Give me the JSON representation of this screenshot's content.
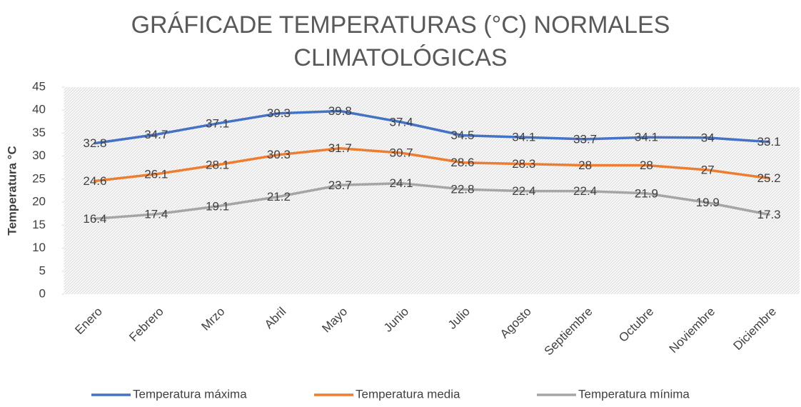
{
  "chart_data": {
    "type": "line",
    "title": "GRÁFICADE TEMPERATURAS (°C) NORMALES CLIMATOLÓGICAS",
    "y_label": "Temperatura °C",
    "categories": [
      "Enero",
      "Febrero",
      "Mrzo",
      "Abril",
      "Mayo",
      "Junio",
      "Julio",
      "Agosto",
      "Septiembre",
      "Octubre",
      "Noviembre",
      "Diciembre"
    ],
    "series": [
      {
        "name": "Temperatura máxima",
        "color": "#4472c4",
        "values": [
          32.8,
          34.7,
          37.1,
          39.3,
          39.8,
          37.4,
          34.5,
          34.1,
          33.7,
          34.1,
          34,
          33.1
        ]
      },
      {
        "name": "Temperatura media",
        "color": "#ed7d31",
        "values": [
          24.6,
          26.1,
          28.1,
          30.3,
          31.7,
          30.7,
          28.6,
          28.3,
          28,
          28,
          27,
          25.2
        ]
      },
      {
        "name": "Temperatura mínima",
        "color": "#a5a5a5",
        "values": [
          16.4,
          17.4,
          19.1,
          21.2,
          23.7,
          24.1,
          22.8,
          22.4,
          22.4,
          21.9,
          19.9,
          17.3
        ]
      }
    ],
    "ylim": [
      0,
      45
    ],
    "yticks": [
      0,
      5,
      10,
      15,
      20,
      25,
      30,
      35,
      40,
      45
    ],
    "legend": "bottom"
  }
}
